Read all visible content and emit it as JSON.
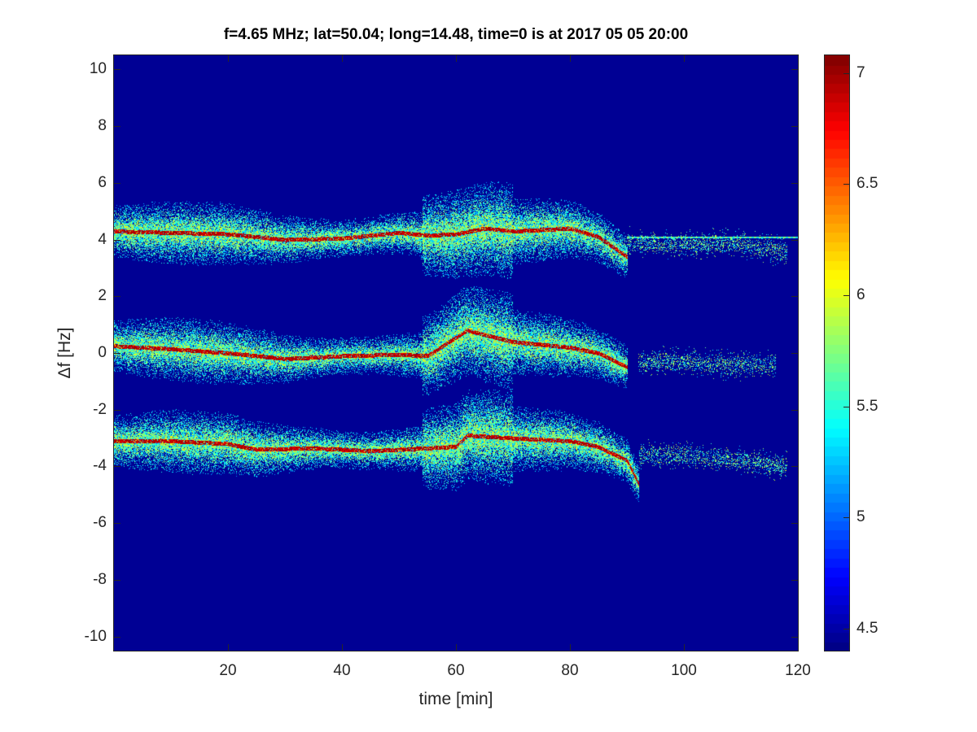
{
  "chart_data": {
    "type": "heatmap",
    "title": "f=4.65 MHz;  lat=50.04; long=14.48, time=0 is at 2017 05 05 20:00",
    "xlabel": "time [min]",
    "ylabel": "Δf [Hz]",
    "xlim": [
      0,
      120
    ],
    "ylim": [
      -10.5,
      10.5
    ],
    "xticks": [
      20,
      40,
      60,
      80,
      100,
      120
    ],
    "yticks": [
      10,
      8,
      6,
      4,
      2,
      0,
      -2,
      -4,
      -6,
      -8,
      -10
    ],
    "colormap": "jet",
    "clim": [
      4.4,
      7.08
    ],
    "colorbar_ticks": [
      7,
      6.5,
      6,
      5.5,
      5,
      4.5
    ],
    "colorbar_location": "right",
    "background_value": 4.4,
    "traces": [
      {
        "t": [
          0,
          10,
          20,
          25,
          30,
          40,
          50,
          55,
          60,
          65,
          70,
          80,
          85,
          90
        ],
        "df": [
          4.3,
          4.25,
          4.2,
          4.1,
          4.0,
          4.05,
          4.25,
          4.15,
          4.2,
          4.4,
          4.3,
          4.4,
          4.1,
          3.4
        ],
        "faint_t": [
          90,
          100,
          108,
          118
        ],
        "faint_df": [
          3.9,
          3.8,
          3.9,
          3.6
        ]
      },
      {
        "t": [
          0,
          10,
          20,
          30,
          40,
          50,
          55,
          58,
          62,
          70,
          80,
          85,
          90
        ],
        "df": [
          0.25,
          0.15,
          0.0,
          -0.2,
          -0.1,
          -0.05,
          -0.1,
          0.3,
          0.8,
          0.4,
          0.2,
          0.0,
          -0.5
        ],
        "faint_t": [
          92,
          100,
          108,
          116
        ],
        "faint_df": [
          -0.3,
          -0.3,
          -0.4,
          -0.4
        ]
      },
      {
        "t": [
          0,
          10,
          20,
          25,
          35,
          45,
          55,
          60,
          62,
          70,
          80,
          85,
          90,
          92
        ],
        "df": [
          -3.1,
          -3.1,
          -3.2,
          -3.4,
          -3.35,
          -3.45,
          -3.35,
          -3.3,
          -2.9,
          -3.0,
          -3.1,
          -3.3,
          -3.8,
          -4.6
        ],
        "faint_t": [
          92,
          100,
          110,
          118
        ],
        "faint_df": [
          -3.6,
          -3.6,
          -3.8,
          -4.0
        ]
      }
    ],
    "constant_line": {
      "t": [
        90,
        120
      ],
      "df": 4.1
    }
  }
}
